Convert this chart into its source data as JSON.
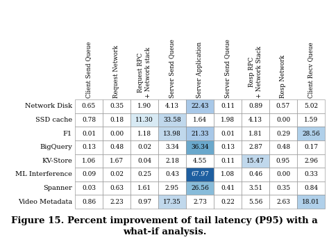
{
  "col_headers": [
    "Client Send Queue",
    "Request Network",
    "Request RPC\n+ Network stack",
    "Server Send Queue",
    "Server Application",
    "Server Send Queue",
    "Resp RPC\n+ Network Stack",
    "Resp Network",
    "Client Recv Queue"
  ],
  "row_headers": [
    "Network Disk",
    "SSD cache",
    "F1",
    "BigQuery",
    "KV-Store",
    "ML Interference",
    "Spanner",
    "Video Metadata"
  ],
  "data": [
    [
      0.65,
      0.35,
      1.9,
      4.13,
      22.43,
      0.11,
      0.89,
      0.57,
      5.02
    ],
    [
      0.78,
      0.18,
      11.3,
      33.58,
      1.64,
      1.98,
      4.13,
      0.0,
      1.59
    ],
    [
      0.01,
      0.0,
      1.18,
      13.98,
      21.33,
      0.01,
      1.81,
      0.29,
      28.56
    ],
    [
      0.13,
      0.48,
      0.02,
      3.34,
      36.34,
      0.13,
      2.87,
      0.48,
      0.17
    ],
    [
      1.06,
      1.67,
      0.04,
      2.18,
      4.55,
      0.11,
      15.47,
      0.95,
      2.96
    ],
    [
      0.09,
      0.02,
      0.25,
      0.43,
      67.97,
      1.08,
      0.46,
      0.0,
      0.33
    ],
    [
      0.03,
      0.63,
      1.61,
      2.95,
      26.56,
      0.41,
      3.51,
      0.35,
      0.84
    ],
    [
      0.86,
      2.23,
      0.97,
      17.35,
      2.73,
      0.22,
      5.56,
      2.63,
      18.01
    ]
  ],
  "highlight_cells": {
    "0,4": "#a8c8e8",
    "1,3": "#c0d8ec",
    "1,2": "#d8eaf4",
    "2,4": "#a8c8e8",
    "2,8": "#b0d0ea",
    "2,3": "#c0d8ec",
    "3,4": "#6aa8cc",
    "4,6": "#c0d8ec",
    "5,4": "#1e5fa0",
    "6,4": "#88bcda",
    "7,3": "#c0d8ec",
    "7,8": "#b0d0ea"
  },
  "highlight_text_white": [
    "5,4"
  ],
  "title_line1": "Figure 15. Percent improvement of tail latency (P95) with a",
  "title_line2": "what-if analysis.",
  "background_color": "#ffffff",
  "font_size_cell": 6.5,
  "font_size_header": 6.2,
  "font_size_row": 7.0,
  "font_size_title": 9.5,
  "edge_color": "#888888",
  "edge_lw": 0.4
}
